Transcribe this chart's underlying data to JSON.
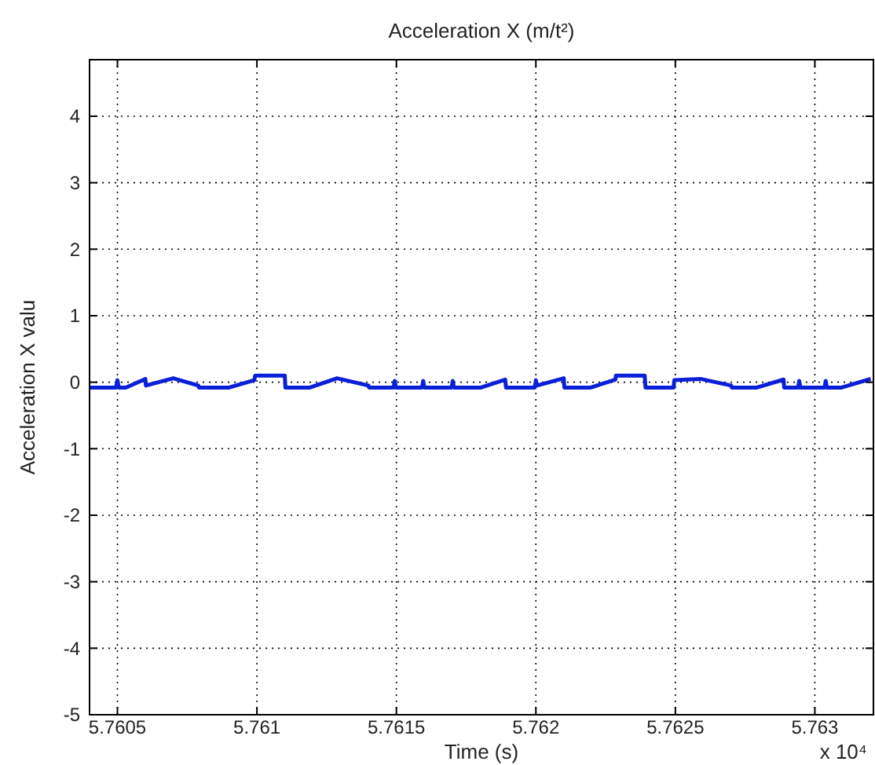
{
  "chart_data": {
    "type": "line",
    "title": "Acceleration X (m/t²)",
    "xlabel": "Time (s)",
    "ylabel": "Acceleration X valu",
    "annotations": [
      "x 10⁴"
    ],
    "xlim": [
      5.7604,
      5.76321
    ],
    "ylim": [
      -5,
      4.85
    ],
    "xticks": [
      5.7605,
      5.761,
      5.7615,
      5.762,
      5.7625,
      5.763
    ],
    "yticks": [
      -5,
      -4,
      -3,
      -2,
      -1,
      0,
      1,
      2,
      3,
      4
    ],
    "grid": true,
    "marker": "none",
    "line_style": "solid",
    "series": [
      {
        "color": "#0a1fd8",
        "x": [
          5.7604,
          5.760495,
          5.7605,
          5.760505,
          5.76053,
          5.7606,
          5.760602,
          5.7607,
          5.76079,
          5.760792,
          5.7609,
          5.76099,
          5.760994,
          5.7611,
          5.761102,
          5.76119,
          5.761287,
          5.7614,
          5.761402,
          5.76149,
          5.761494,
          5.761498,
          5.761592,
          5.761596,
          5.7616,
          5.761698,
          5.761702,
          5.761706,
          5.761803,
          5.76189,
          5.761893,
          5.761996,
          5.762,
          5.762004,
          5.7621,
          5.762102,
          5.762197,
          5.762285,
          5.762287,
          5.76239,
          5.762393,
          5.762494,
          5.762496,
          5.76259,
          5.7627,
          5.762702,
          5.762792,
          5.762888,
          5.76289,
          5.76294,
          5.762944,
          5.762948,
          5.763035,
          5.763039,
          5.763043,
          5.763096,
          5.7632
        ],
        "values": [
          -0.08,
          -0.08,
          0.03,
          -0.08,
          -0.08,
          0.05,
          -0.05,
          0.06,
          -0.05,
          -0.08,
          -0.08,
          0.03,
          0.1,
          0.1,
          -0.08,
          -0.08,
          0.06,
          -0.05,
          -0.08,
          -0.08,
          0.02,
          -0.08,
          -0.08,
          0.02,
          -0.08,
          -0.08,
          0.02,
          -0.08,
          -0.08,
          0.04,
          -0.08,
          -0.08,
          0.03,
          -0.05,
          0.06,
          -0.08,
          -0.08,
          0.04,
          0.1,
          0.1,
          -0.08,
          -0.08,
          0.03,
          0.05,
          -0.05,
          -0.08,
          -0.08,
          0.04,
          -0.08,
          -0.08,
          0.02,
          -0.08,
          -0.08,
          0.02,
          -0.08,
          -0.08,
          0.05
        ]
      }
    ]
  }
}
